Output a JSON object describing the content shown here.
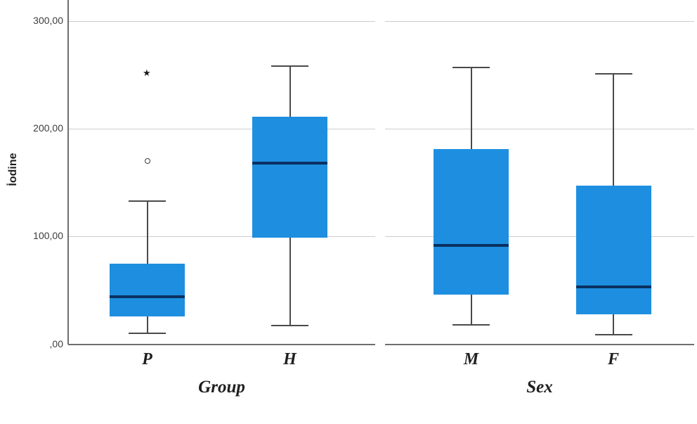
{
  "figure": {
    "ylabel": "İodine"
  },
  "chart_data": {
    "type": "boxplot",
    "title": "",
    "ylabel": "İodine",
    "ylim": [
      0,
      320
    ],
    "grid": true,
    "y_tick_values": [
      0,
      100,
      200,
      300
    ],
    "y_tick_labels": [
      ",00",
      "100,00",
      "200,00",
      "300,00"
    ],
    "colors": {
      "box_fill": "#1e8fe0",
      "median_line": "#0a3161",
      "whisker": "#4a4a4a",
      "gridline": "#cdcdcd",
      "axis": "#6e6e6e",
      "text": "#1f1f1f"
    },
    "panels": [
      {
        "xlabel": "Group",
        "boxes": [
          {
            "category": "P",
            "min": 10,
            "q1": 26,
            "median": 44,
            "q3": 75,
            "max": 133,
            "outliers": [
              {
                "marker": "circle",
                "value": 170
              },
              {
                "marker": "star",
                "value": 252
              }
            ]
          },
          {
            "category": "H",
            "min": 17,
            "q1": 99,
            "median": 168,
            "q3": 211,
            "max": 258,
            "outliers": []
          }
        ]
      },
      {
        "xlabel": "Sex",
        "boxes": [
          {
            "category": "M",
            "min": 18,
            "q1": 46,
            "median": 92,
            "q3": 181,
            "max": 257,
            "outliers": []
          },
          {
            "category": "F",
            "min": 9,
            "q1": 28,
            "median": 53,
            "q3": 147,
            "max": 251,
            "outliers": []
          }
        ]
      }
    ]
  }
}
